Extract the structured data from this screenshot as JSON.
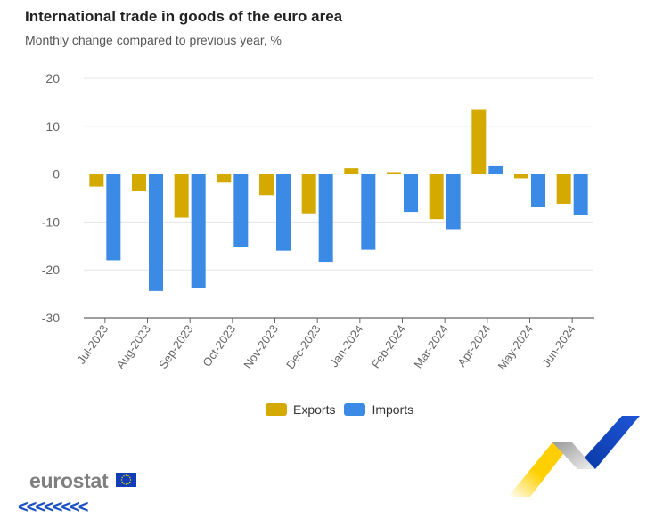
{
  "header": {
    "title": "International trade in goods of the euro area",
    "subtitle": "Monthly change compared to previous year, %"
  },
  "branding": {
    "logo_text": "eurostat",
    "flag_icon": "eu-flag-icon",
    "chevrons": "<<<<<<<<"
  },
  "colors": {
    "exports": "#d4aa00",
    "imports": "#3a8ae6",
    "grid": "#e3e6ea",
    "axis": "#666666",
    "tick_label": "#666666"
  },
  "chart_data": {
    "type": "bar",
    "title": "International trade in goods of the euro area",
    "subtitle": "Monthly change compared to previous year, %",
    "xlabel": "",
    "ylabel": "",
    "categories": [
      "Jul-2023",
      "Aug-2023",
      "Sep-2023",
      "Oct-2023",
      "Nov-2023",
      "Dec-2023",
      "Jan-2024",
      "Feb-2024",
      "Mar-2024",
      "Apr-2024",
      "May-2024",
      "Jun-2024"
    ],
    "series": [
      {
        "name": "Exports",
        "values": [
          -2.6,
          -3.5,
          -9.1,
          -1.8,
          -4.4,
          -8.2,
          1.2,
          0.4,
          -9.4,
          13.4,
          -0.9,
          -6.2
        ]
      },
      {
        "name": "Imports",
        "values": [
          -18.0,
          -24.4,
          -23.8,
          -15.2,
          -16.0,
          -18.3,
          -15.8,
          -7.9,
          -11.5,
          1.8,
          -6.8,
          -8.6
        ]
      }
    ],
    "ylim": [
      -30,
      20
    ],
    "yticks": [
      20,
      10,
      0,
      -10,
      -20,
      -30
    ],
    "grid": true,
    "legend": "bottom-center"
  }
}
